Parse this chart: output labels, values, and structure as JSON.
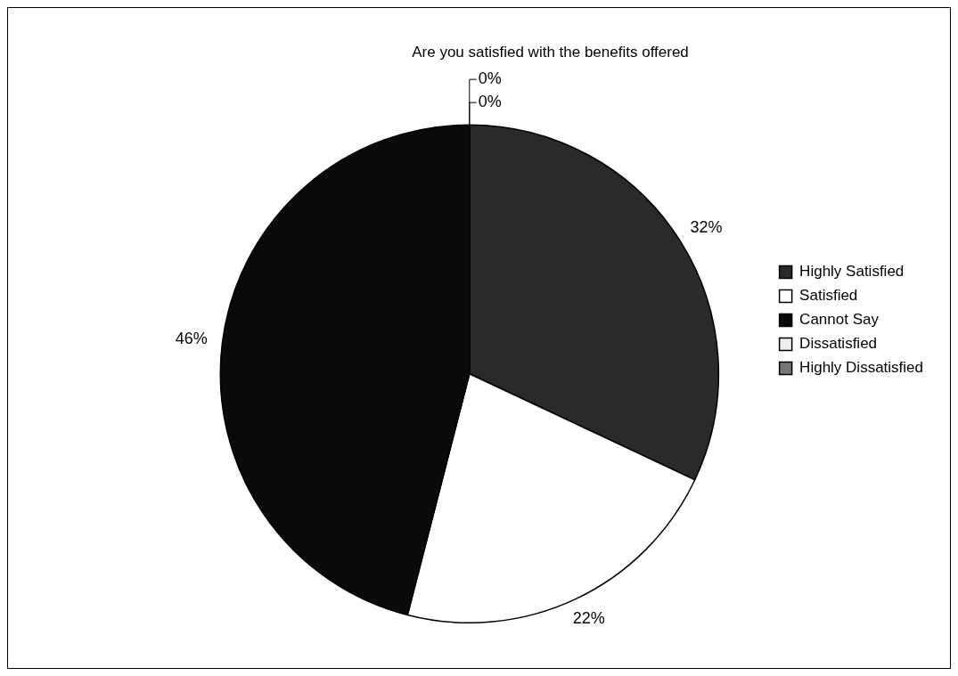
{
  "chart_data": {
    "type": "pie",
    "title": "Are you satisfied with the benefits offered",
    "categories": [
      "Highly Satisfied",
      "Satisfied",
      "Cannot Say",
      "Dissatisfied",
      "Highly Dissatisfied"
    ],
    "values": [
      32,
      22,
      46,
      0,
      0
    ],
    "colors": [
      "#2a2a2a",
      "#ffffff",
      "#0a0a0a",
      "#eeeeee",
      "#777777"
    ],
    "value_labels": [
      "32%",
      "22%",
      "46%",
      "0%",
      "0%"
    ],
    "legend": "right"
  }
}
